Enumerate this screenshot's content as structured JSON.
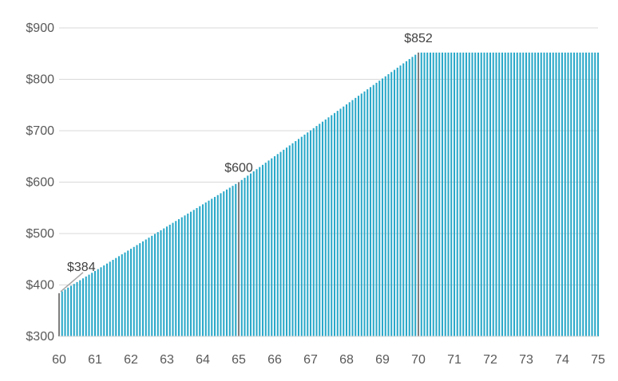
{
  "chart_data": {
    "type": "bar",
    "title": "",
    "xlabel": "",
    "ylabel": "",
    "xlim": [
      60,
      75
    ],
    "ylim": [
      300,
      900
    ],
    "y_ticks": [
      "$300",
      "$400",
      "$500",
      "$600",
      "$700",
      "$800",
      "$900"
    ],
    "x_ticks": [
      "60",
      "61",
      "62",
      "63",
      "64",
      "65",
      "66",
      "67",
      "68",
      "69",
      "70",
      "71",
      "72",
      "73",
      "74",
      "75"
    ],
    "grid": "horizontal",
    "bar_color": "#2aa8c8",
    "highlight_color": "#7f7f7f",
    "points_per_year": 12,
    "series": [
      {
        "segments": [
          {
            "from_age": 60,
            "to_age": 65,
            "from_value": 384,
            "to_value": 600
          },
          {
            "from_age": 65,
            "to_age": 70,
            "from_value": 600,
            "to_value": 852
          },
          {
            "from_age": 70,
            "to_age": 75,
            "from_value": 852,
            "to_value": 852
          }
        ]
      }
    ],
    "highlighted_ages": [
      60,
      65,
      70
    ],
    "annotations": [
      {
        "age": 60,
        "value": 384,
        "label": "$384"
      },
      {
        "age": 65,
        "value": 600,
        "label": "$600"
      },
      {
        "age": 70,
        "value": 852,
        "label": "$852"
      }
    ]
  }
}
